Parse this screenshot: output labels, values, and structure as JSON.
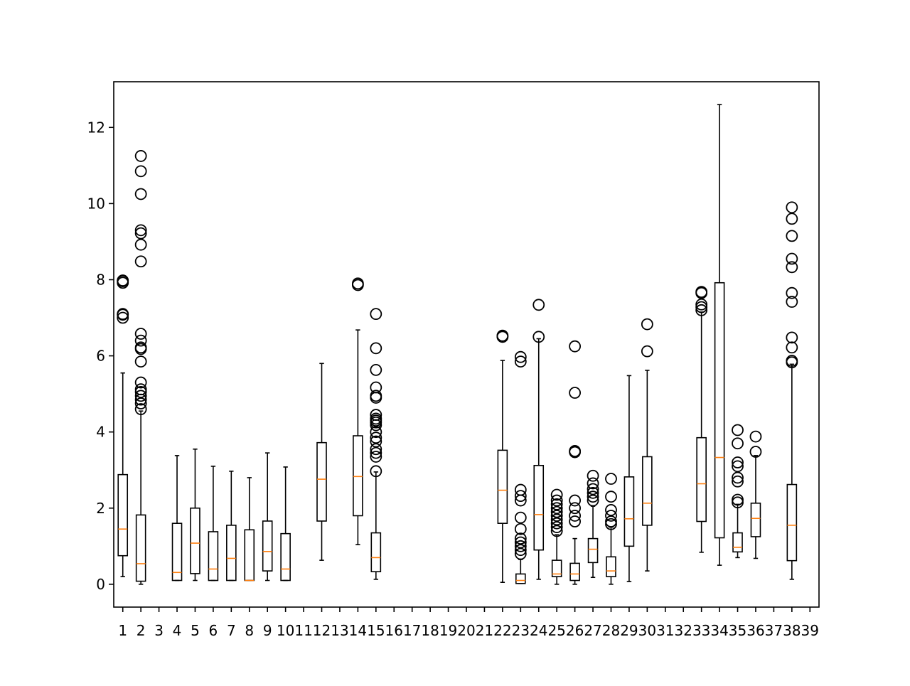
{
  "chart_data": {
    "type": "box",
    "title": "",
    "xlabel": "",
    "ylabel": "",
    "ylim": [
      -0.6,
      13.2
    ],
    "xlim": [
      0.5,
      39.5
    ],
    "yticks": [
      0,
      2,
      4,
      6,
      8,
      10,
      12
    ],
    "ytick_labels": [
      "0",
      "2",
      "4",
      "6",
      "8",
      "10",
      "12"
    ],
    "categories": [
      "1",
      "2",
      "3",
      "4",
      "5",
      "6",
      "7",
      "8",
      "9",
      "10",
      "11",
      "12",
      "13",
      "14",
      "15",
      "16",
      "17",
      "18",
      "19",
      "20",
      "21",
      "22",
      "23",
      "24",
      "25",
      "26",
      "27",
      "28",
      "29",
      "30",
      "31",
      "32",
      "33",
      "34",
      "35",
      "36",
      "37",
      "38",
      "39"
    ],
    "grid": false,
    "colors": {
      "box": "#000000",
      "median": "#ff7f0e",
      "background": "#ffffff"
    },
    "boxes": [
      {
        "label": "1",
        "q1": 0.75,
        "median": 1.45,
        "q3": 2.88,
        "whislo": 0.2,
        "whishi": 5.55,
        "fliers": [
          7.0,
          7.08,
          7.1,
          7.92,
          7.96,
          7.98
        ]
      },
      {
        "label": "2",
        "q1": 0.08,
        "median": 0.54,
        "q3": 1.82,
        "whislo": 0.0,
        "whishi": 4.55,
        "fliers": [
          4.6,
          4.75,
          4.85,
          4.95,
          5.05,
          5.12,
          5.3,
          5.85,
          6.18,
          6.22,
          6.4,
          6.58,
          8.48,
          8.92,
          9.22,
          9.3,
          10.25,
          10.85,
          11.25
        ]
      },
      {
        "label": "3",
        "empty": true
      },
      {
        "label": "4",
        "q1": 0.1,
        "median": 0.31,
        "q3": 1.6,
        "whislo": 0.1,
        "whishi": 3.38,
        "fliers": []
      },
      {
        "label": "5",
        "q1": 0.28,
        "median": 1.08,
        "q3": 2.0,
        "whislo": 0.1,
        "whishi": 3.55,
        "fliers": []
      },
      {
        "label": "6",
        "q1": 0.1,
        "median": 0.4,
        "q3": 1.38,
        "whislo": 0.1,
        "whishi": 3.1,
        "fliers": []
      },
      {
        "label": "7",
        "q1": 0.1,
        "median": 0.68,
        "q3": 1.55,
        "whislo": 0.1,
        "whishi": 2.97,
        "fliers": []
      },
      {
        "label": "8",
        "q1": 0.1,
        "median": 0.1,
        "q3": 1.43,
        "whislo": 0.1,
        "whishi": 2.8,
        "fliers": []
      },
      {
        "label": "9",
        "q1": 0.35,
        "median": 0.86,
        "q3": 1.66,
        "whislo": 0.1,
        "whishi": 3.45,
        "fliers": []
      },
      {
        "label": "10",
        "q1": 0.1,
        "median": 0.4,
        "q3": 1.33,
        "whislo": 0.1,
        "whishi": 3.08,
        "fliers": []
      },
      {
        "label": "11",
        "empty": true
      },
      {
        "label": "12",
        "q1": 1.66,
        "median": 2.76,
        "q3": 3.72,
        "whislo": 0.63,
        "whishi": 5.8,
        "fliers": []
      },
      {
        "label": "13",
        "empty": true
      },
      {
        "label": "14",
        "q1": 1.8,
        "median": 2.83,
        "q3": 3.9,
        "whislo": 1.04,
        "whishi": 6.68,
        "fliers": [
          7.86,
          7.9
        ]
      },
      {
        "label": "15",
        "q1": 0.33,
        "median": 0.7,
        "q3": 1.35,
        "whislo": 0.13,
        "whishi": 2.95,
        "fliers": [
          2.97,
          3.35,
          3.45,
          3.55,
          3.75,
          3.85,
          4.0,
          4.18,
          4.25,
          4.3,
          4.35,
          4.45,
          4.9,
          4.95,
          5.17,
          5.63,
          6.2,
          7.1
        ]
      },
      {
        "label": "16",
        "empty": true
      },
      {
        "label": "17",
        "empty": true
      },
      {
        "label": "18",
        "empty": true
      },
      {
        "label": "19",
        "empty": true
      },
      {
        "label": "20",
        "empty": true
      },
      {
        "label": "21",
        "empty": true
      },
      {
        "label": "22",
        "q1": 1.6,
        "median": 2.47,
        "q3": 3.52,
        "whislo": 0.05,
        "whishi": 5.88,
        "fliers": [
          6.5,
          6.53
        ]
      },
      {
        "label": "23",
        "q1": 0.02,
        "median": 0.1,
        "q3": 0.27,
        "whislo": 0.02,
        "whishi": 0.65,
        "fliers": [
          0.8,
          0.9,
          1.0,
          1.1,
          1.2,
          1.45,
          1.75,
          2.2,
          2.32,
          2.48,
          5.85,
          5.97
        ]
      },
      {
        "label": "24",
        "q1": 0.9,
        "median": 1.83,
        "q3": 3.12,
        "whislo": 0.13,
        "whishi": 6.45,
        "fliers": [
          6.5,
          7.34
        ]
      },
      {
        "label": "25",
        "q1": 0.2,
        "median": 0.27,
        "q3": 0.63,
        "whislo": 0.0,
        "whishi": 1.3,
        "fliers": [
          1.4,
          1.5,
          1.6,
          1.7,
          1.8,
          1.9,
          2.0,
          2.1,
          2.2,
          2.35
        ]
      },
      {
        "label": "26",
        "q1": 0.1,
        "median": 0.27,
        "q3": 0.55,
        "whislo": 0.0,
        "whishi": 1.2,
        "fliers": [
          1.65,
          1.8,
          2.0,
          2.2,
          3.47,
          3.5,
          5.03,
          6.25
        ]
      },
      {
        "label": "27",
        "q1": 0.57,
        "median": 0.92,
        "q3": 1.2,
        "whislo": 0.18,
        "whishi": 2.05,
        "fliers": [
          2.2,
          2.3,
          2.4,
          2.5,
          2.65,
          2.85
        ]
      },
      {
        "label": "28",
        "q1": 0.2,
        "median": 0.35,
        "q3": 0.72,
        "whislo": 0.0,
        "whishi": 1.5,
        "fliers": [
          1.58,
          1.65,
          1.8,
          1.95,
          2.3,
          2.77
        ]
      },
      {
        "label": "29",
        "q1": 1.0,
        "median": 1.72,
        "q3": 2.82,
        "whislo": 0.07,
        "whishi": 5.48,
        "fliers": []
      },
      {
        "label": "30",
        "q1": 1.55,
        "median": 2.13,
        "q3": 3.35,
        "whislo": 0.35,
        "whishi": 5.62,
        "fliers": [
          6.12,
          6.83
        ]
      },
      {
        "label": "31",
        "empty": true
      },
      {
        "label": "32",
        "empty": true
      },
      {
        "label": "33",
        "q1": 1.65,
        "median": 2.64,
        "q3": 3.85,
        "whislo": 0.84,
        "whishi": 7.15,
        "fliers": [
          7.2,
          7.28,
          7.35,
          7.65,
          7.68
        ]
      },
      {
        "label": "34",
        "q1": 1.22,
        "median": 3.33,
        "q3": 7.92,
        "whislo": 0.5,
        "whishi": 12.6,
        "fliers": []
      },
      {
        "label": "35",
        "q1": 0.85,
        "median": 0.97,
        "q3": 1.35,
        "whislo": 0.7,
        "whishi": 2.1,
        "fliers": [
          2.15,
          2.22,
          2.7,
          2.8,
          3.1,
          3.2,
          3.7,
          4.05
        ]
      },
      {
        "label": "36",
        "q1": 1.25,
        "median": 1.73,
        "q3": 2.13,
        "whislo": 0.68,
        "whishi": 3.38,
        "fliers": [
          3.48,
          3.88
        ]
      },
      {
        "label": "37",
        "empty": true
      },
      {
        "label": "38",
        "q1": 0.62,
        "median": 1.55,
        "q3": 2.62,
        "whislo": 0.13,
        "whishi": 5.78,
        "fliers": [
          5.83,
          5.87,
          6.22,
          6.48,
          7.42,
          7.65,
          8.33,
          8.55,
          9.15,
          9.6,
          9.9
        ]
      },
      {
        "label": "39",
        "empty": true
      }
    ]
  }
}
